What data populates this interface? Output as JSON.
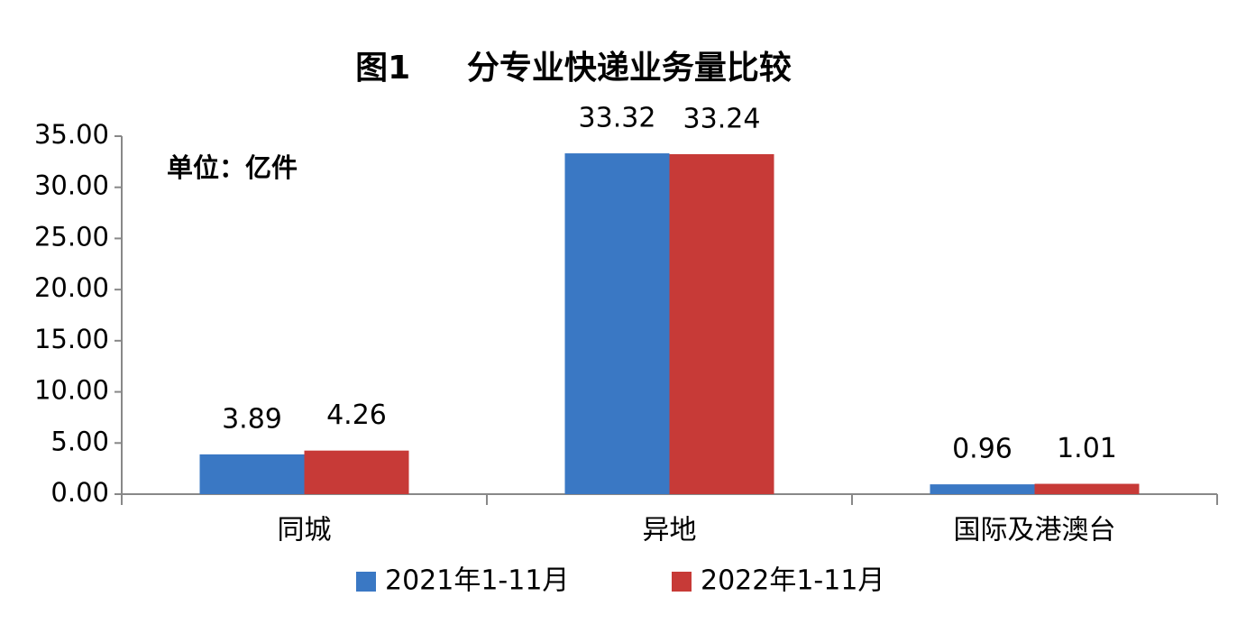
{
  "chart_data": {
    "type": "bar",
    "title": "图1     分专业快递业务量比较",
    "annotation": "单位：亿件",
    "categories": [
      "同城",
      "异地",
      "国际及港澳台"
    ],
    "series": [
      {
        "name": "2021年1-11月",
        "color": "#3a78c4",
        "values": [
          3.89,
          33.32,
          0.96
        ]
      },
      {
        "name": "2022年1-11月",
        "color": "#c73a37",
        "values": [
          4.26,
          33.24,
          1.01
        ]
      }
    ],
    "ylim": [
      0,
      35
    ],
    "yticks": [
      {
        "value": 0,
        "label": "0.00"
      },
      {
        "value": 5,
        "label": "5.00"
      },
      {
        "value": 10,
        "label": "10.00"
      },
      {
        "value": 15,
        "label": "15.00"
      },
      {
        "value": 20,
        "label": "20.00"
      },
      {
        "value": 25,
        "label": "25.00"
      },
      {
        "value": 30,
        "label": "30.00"
      },
      {
        "value": 35,
        "label": "35.00"
      }
    ],
    "grid": false,
    "legend": "bottom"
  }
}
